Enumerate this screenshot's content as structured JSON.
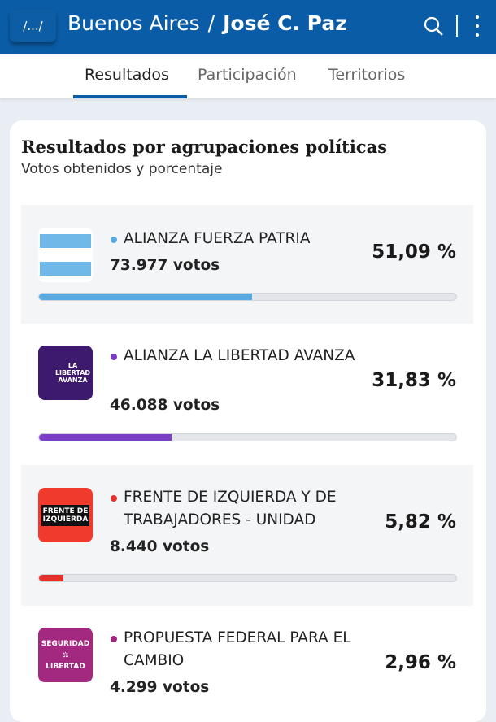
{
  "header": {
    "home_label": "/.../",
    "province": "Buenos Aires",
    "separator": "/",
    "municipality": "José C. Paz",
    "brand_color": "#0b5ca6"
  },
  "tabs": [
    {
      "label": "Resultados",
      "active": true
    },
    {
      "label": "Participación",
      "active": false
    },
    {
      "label": "Territorios",
      "active": false
    }
  ],
  "card": {
    "title": "Resultados por agrupaciones políticas",
    "subtitle": "Votos obtenidos y porcentaje"
  },
  "parties": [
    {
      "name": "ALIANZA FUERZA PATRIA",
      "votes": "73.977 votos",
      "percent_label": "51,09 %",
      "percent": 51.09,
      "color": "#5aa9e0",
      "logo": "argentina-flag"
    },
    {
      "name": "ALIANZA LA LIBERTAD AVANZA",
      "votes": "46.088 votos",
      "percent_label": "31,83 %",
      "percent": 31.83,
      "color": "#7a3fc4",
      "logo": "la-libertad-avanza",
      "logo_text": "LA LIBERTAD AVANZA"
    },
    {
      "name": "FRENTE DE IZQUIERDA Y DE TRABAJADORES - UNIDAD",
      "votes": "8.440 votos",
      "percent_label": "5,82 %",
      "percent": 5.82,
      "color": "#e8302b",
      "logo": "frente-de-izquierda",
      "logo_text": "FRENTE DE IZQUIERDA UNIDAD"
    },
    {
      "name": "PROPUESTA FEDERAL PARA EL CAMBIO",
      "votes": "4.299 votos",
      "percent_label": "2,96 %",
      "percent": 2.96,
      "color": "#a0287e",
      "logo": "seguridad-libertad",
      "logo_text": "SEGURIDAD LIBERTAD"
    }
  ]
}
